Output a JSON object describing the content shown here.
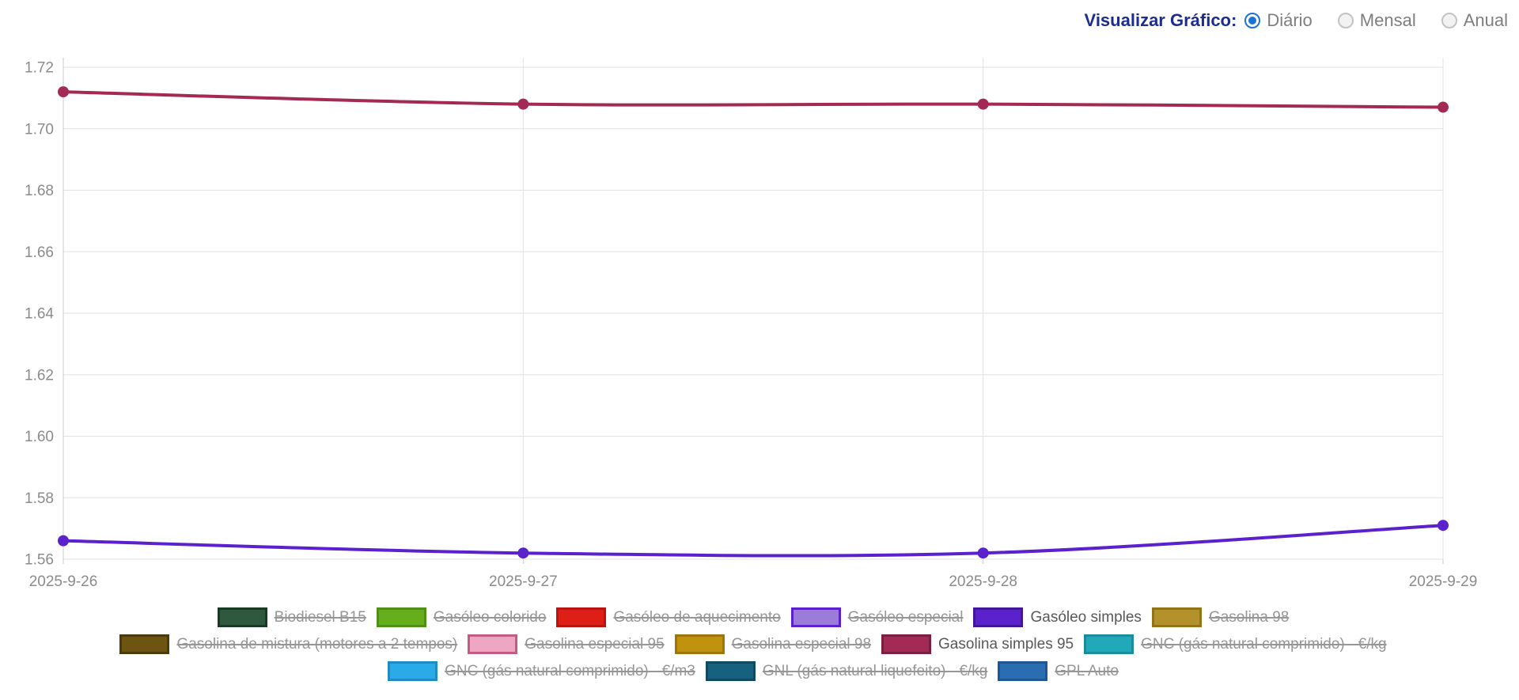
{
  "controls": {
    "label": "Visualizar Gráfico:",
    "options": [
      {
        "label": "Diário",
        "selected": true
      },
      {
        "label": "Mensal",
        "selected": false
      },
      {
        "label": "Anual",
        "selected": false
      }
    ]
  },
  "chart_data": {
    "type": "line",
    "title": "",
    "xlabel": "",
    "ylabel": "",
    "x": [
      "2025-9-26",
      "2025-9-27",
      "2025-9-28",
      "2025-9-29"
    ],
    "ylim": [
      1.56,
      1.72
    ],
    "yticks": [
      1.72,
      1.7,
      1.68,
      1.66,
      1.64,
      1.62,
      1.6,
      1.58,
      1.56
    ],
    "grid": true,
    "legend_position": "bottom",
    "series": [
      {
        "name": "Gasóleo simples",
        "color": "#5a21cc",
        "values": [
          1.566,
          1.562,
          1.562,
          1.571
        ]
      },
      {
        "name": "Gasolina simples 95",
        "color": "#a22a55",
        "values": [
          1.712,
          1.708,
          1.708,
          1.707
        ]
      }
    ],
    "legend": [
      {
        "label": "Biodiesel B15",
        "fill": "#30583f",
        "border": "#173b24",
        "hidden": true
      },
      {
        "label": "Gasóleo colorido",
        "fill": "#66ae1a",
        "border": "#519016",
        "hidden": true
      },
      {
        "label": "Gasóleo de aquecimento",
        "fill": "#de1f17",
        "border": "#bb1410",
        "hidden": true
      },
      {
        "label": "Gasóleo especial",
        "fill": "#9c7cd9",
        "border": "#5a21cc",
        "hidden": true
      },
      {
        "label": "Gasóleo simples",
        "fill": "#5a21cc",
        "border": "#41169c",
        "hidden": false
      },
      {
        "label": "Gasolina 98",
        "fill": "#b5912c",
        "border": "#927414",
        "hidden": true
      },
      {
        "label": "Gasolina de mistura (motores a 2 tempos)",
        "fill": "#6d5511",
        "border": "#4c3b0a",
        "hidden": true
      },
      {
        "label": "Gasolina especial 95",
        "fill": "#eda7c2",
        "border": "#c25c82",
        "hidden": true
      },
      {
        "label": "Gasolina especial 98",
        "fill": "#c1920e",
        "border": "#9c760a",
        "hidden": true
      },
      {
        "label": "Gasolina simples 95",
        "fill": "#a22a55",
        "border": "#7d1d3f",
        "hidden": false
      },
      {
        "label": "GNC (gás natural comprimido) - €/kg",
        "fill": "#21a9b9",
        "border": "#188d9b",
        "hidden": true
      },
      {
        "label": "GNC (gás natural comprimido) - €/m3",
        "fill": "#2aaae9",
        "border": "#1e8cc4",
        "hidden": true
      },
      {
        "label": "GNL (gás natural liquefeito) - €/kg",
        "fill": "#16617d",
        "border": "#0e4a61",
        "hidden": true
      },
      {
        "label": "GPL Auto",
        "fill": "#2b6db1",
        "border": "#1f5694",
        "hidden": true
      }
    ],
    "legend_rows": [
      6,
      5,
      3
    ]
  },
  "style": {
    "grid_color": "#e2e2e2",
    "axis_color": "#c9c9c9",
    "tick_label_color": "#8b8b8b"
  }
}
